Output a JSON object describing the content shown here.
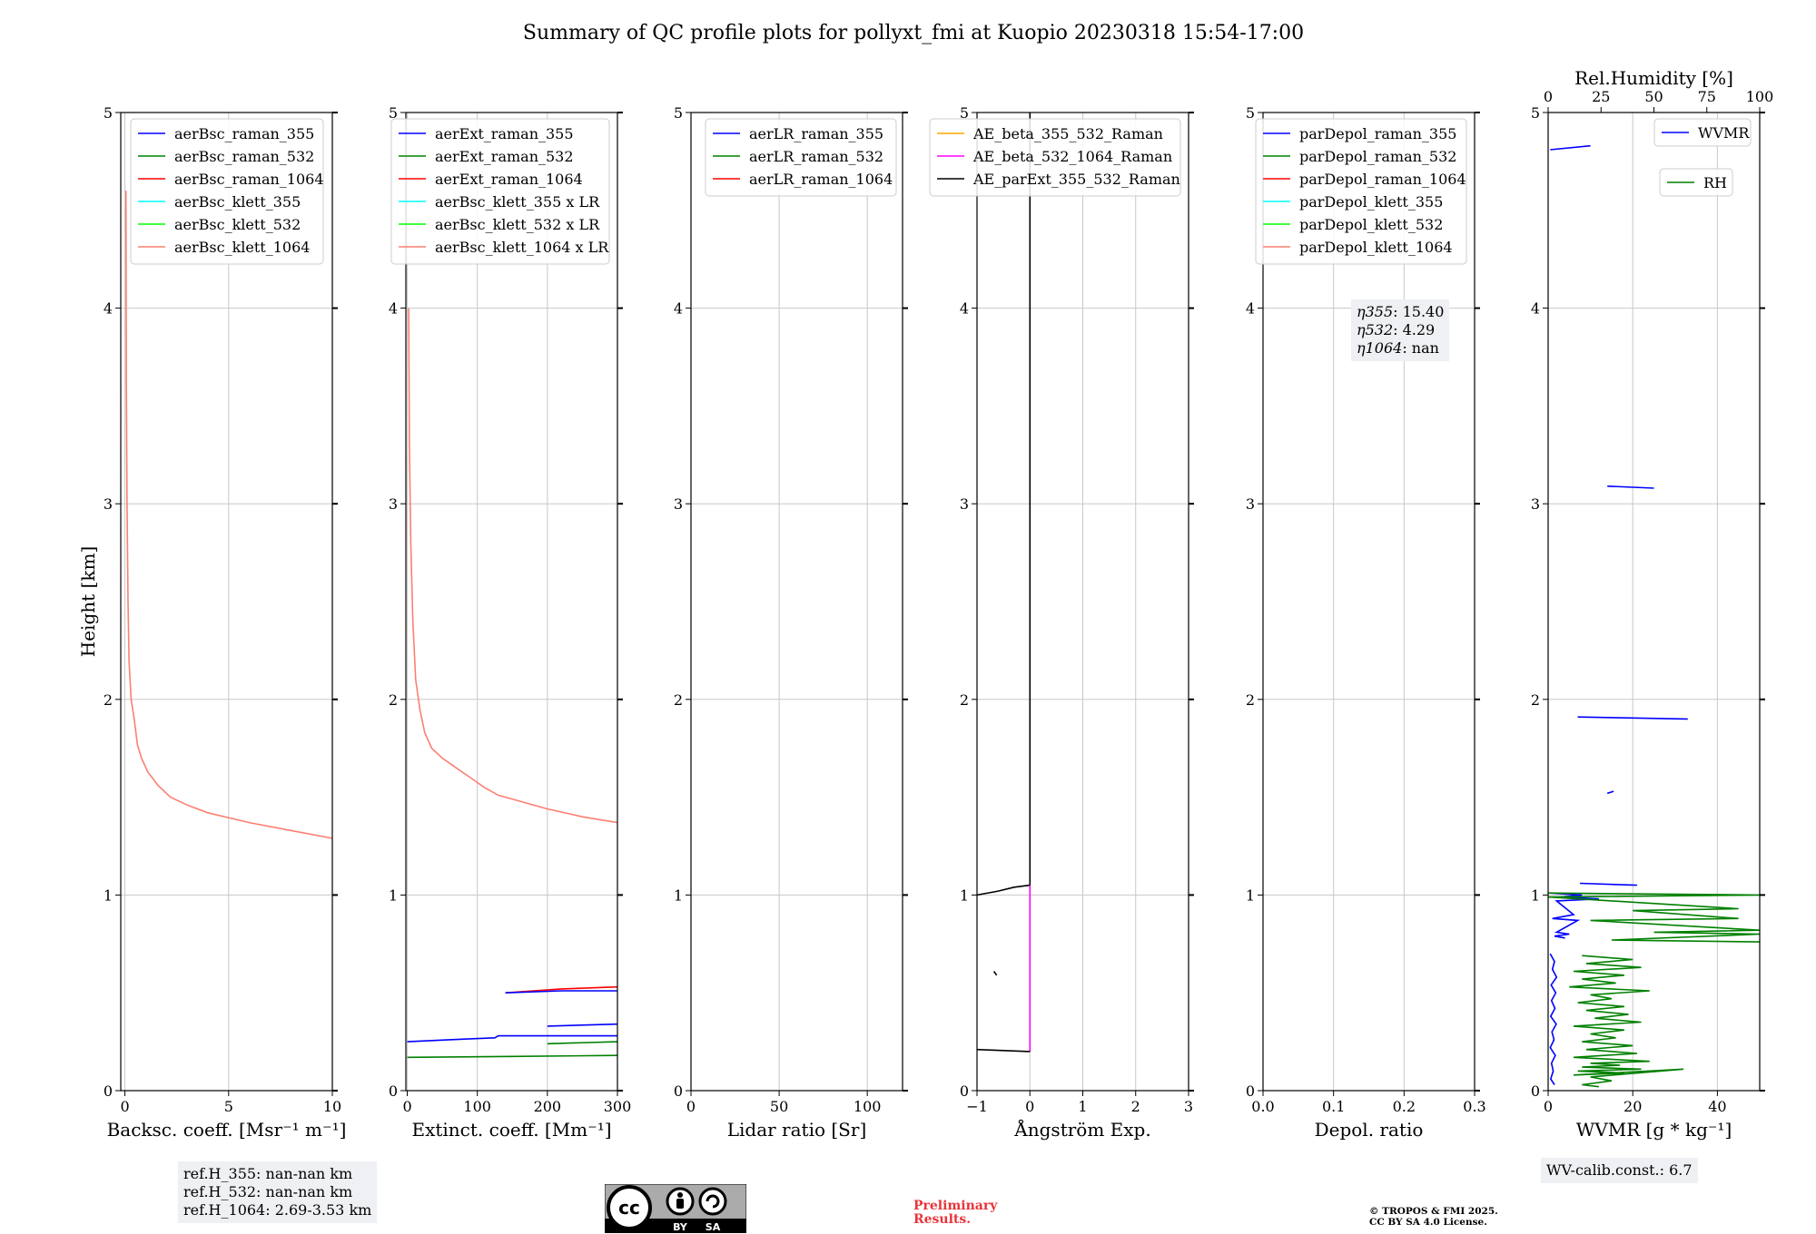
{
  "title": "Summary of QC profile plots for pollyxt_fmi at Kuopio 20230318 15:54-17:00",
  "colors": {
    "blue": "#0000ff",
    "green": "#008000",
    "red": "#ff0000",
    "cyan": "#00ffff",
    "lime": "#00ff00",
    "salmon": "#fa8072",
    "orange": "#ffa500",
    "magenta": "#ff00ff",
    "black": "#000000",
    "grid": "#c8c8c8",
    "annotation_bg": "#eef0f3",
    "prelim": "#e8353b"
  },
  "ref_heights": [
    "ref.H_355: nan-nan km",
    "ref.H_532: nan-nan km",
    "ref.H_1064: 2.69-3.53 km"
  ],
  "eta": {
    "e355_label": "η355",
    "e355_value": ": 15.40",
    "e532_label": "η532",
    "e532_value": ": 4.29",
    "e1064_label": "η1064",
    "e1064_value": ": nan"
  },
  "wv_calib": "WV-calib.const.: 6.7",
  "preliminary": [
    "Preliminary",
    "Results."
  ],
  "copyright": [
    "© TROPOS & FMI 2025.",
    "CC BY SA 4.0 License."
  ],
  "license_badge": {
    "icon": "cc-by-sa-icon",
    "by": "BY",
    "sa": "SA"
  },
  "chart_data": [
    {
      "type": "line",
      "id": "backscatter",
      "xlabel": "Backsc. coeff. [Msr⁻¹ m⁻¹]",
      "ylabel": "Height [km]",
      "xlim": [
        -0.2,
        10
      ],
      "ylim": [
        0,
        5
      ],
      "xticks": [
        "0",
        "5",
        "10"
      ],
      "xtick_values": [
        0,
        5,
        10
      ],
      "yticks": [
        "0",
        "1",
        "2",
        "3",
        "4",
        "5"
      ],
      "grid": true,
      "legend_position": "top-right",
      "legend": [
        "aerBsc_raman_355",
        "aerBsc_raman_532",
        "aerBsc_raman_1064",
        "aerBsc_klett_355",
        "aerBsc_klett_532",
        "aerBsc_klett_1064"
      ],
      "legend_colors": [
        "blue",
        "green",
        "red",
        "cyan",
        "lime",
        "salmon"
      ],
      "series": [
        {
          "name": "aerBsc_klett_1064",
          "color": "salmon",
          "x": [
            10,
            8,
            6,
            4,
            3,
            2.2,
            1.6,
            1.1,
            0.8,
            0.6,
            0.45,
            0.3,
            0.2,
            0.15,
            0.1,
            0.07,
            0.05
          ],
          "y": [
            1.29,
            1.33,
            1.37,
            1.42,
            1.46,
            1.5,
            1.56,
            1.63,
            1.7,
            1.77,
            1.9,
            2.0,
            2.2,
            2.5,
            3.0,
            3.6,
            4.6
          ]
        }
      ]
    },
    {
      "type": "line",
      "id": "extinction",
      "xlabel": "Extinct. coeff. [Mm⁻¹]",
      "xlim": [
        -2,
        300
      ],
      "ylim": [
        0,
        5
      ],
      "xticks": [
        "0",
        "100",
        "200",
        "300"
      ],
      "xtick_values": [
        0,
        100,
        200,
        300
      ],
      "yticks": [
        "0",
        "1",
        "2",
        "3",
        "4",
        "5"
      ],
      "grid": true,
      "legend_position": "top-right",
      "legend": [
        "aerExt_raman_355",
        "aerExt_raman_532",
        "aerExt_raman_1064",
        "aerBsc_klett_355 x LR",
        "aerBsc_klett_532 x LR",
        "aerBsc_klett_1064 x LR"
      ],
      "legend_colors": [
        "blue",
        "green",
        "red",
        "cyan",
        "lime",
        "salmon"
      ],
      "series": [
        {
          "name": "aerBsc_klett_1064 x LR",
          "color": "salmon",
          "x": [
            300,
            250,
            200,
            160,
            130,
            110,
            90,
            70,
            50,
            35,
            25,
            18,
            12,
            8,
            5,
            3,
            2
          ],
          "y": [
            1.37,
            1.4,
            1.44,
            1.48,
            1.51,
            1.55,
            1.6,
            1.65,
            1.7,
            1.75,
            1.83,
            1.95,
            2.1,
            2.4,
            2.8,
            3.3,
            4.0
          ]
        },
        {
          "name": "aerExt_raman_1064",
          "color": "red",
          "x": [
            140,
            220,
            300
          ],
          "y": [
            0.5,
            0.52,
            0.53
          ]
        },
        {
          "name": "aerExt_raman_355",
          "color": "blue",
          "x": [
            140,
            220,
            300
          ],
          "y": [
            0.5,
            0.51,
            0.51
          ]
        },
        {
          "name": "aerExt_raman_355",
          "color": "blue",
          "x": [
            0,
            60,
            125,
            130,
            300
          ],
          "y": [
            0.25,
            0.26,
            0.27,
            0.28,
            0.28
          ]
        },
        {
          "name": "aerExt_raman_355",
          "color": "blue",
          "x": [
            200,
            300
          ],
          "y": [
            0.33,
            0.34
          ]
        },
        {
          "name": "aerExt_raman_532",
          "color": "green",
          "x": [
            0,
            150,
            300
          ],
          "y": [
            0.17,
            0.175,
            0.18
          ]
        },
        {
          "name": "aerExt_raman_532",
          "color": "green",
          "x": [
            200,
            300
          ],
          "y": [
            0.24,
            0.25
          ]
        }
      ]
    },
    {
      "type": "line",
      "id": "lidar-ratio",
      "xlabel": "Lidar ratio [Sr]",
      "xlim": [
        0,
        120
      ],
      "ylim": [
        0,
        5
      ],
      "xticks": [
        "0",
        "50",
        "100"
      ],
      "xtick_values": [
        0,
        50,
        100
      ],
      "yticks": [
        "0",
        "1",
        "2",
        "3",
        "4",
        "5"
      ],
      "grid": true,
      "legend_position": "top-right",
      "legend": [
        "aerLR_raman_355",
        "aerLR_raman_532",
        "aerLR_raman_1064"
      ],
      "legend_colors": [
        "blue",
        "green",
        "red"
      ],
      "series": []
    },
    {
      "type": "line",
      "id": "angstrom",
      "xlabel": "Ångström Exp.",
      "xlim": [
        -1,
        3
      ],
      "ylim": [
        0,
        5
      ],
      "xticks": [
        "−1",
        "0",
        "1",
        "2",
        "3"
      ],
      "xtick_values": [
        -1,
        0,
        1,
        2,
        3
      ],
      "yticks": [
        "0",
        "1",
        "2",
        "3",
        "4",
        "5"
      ],
      "grid": true,
      "legend_position": "top-left",
      "legend": [
        "AE_beta_355_532_Raman",
        "AE_beta_532_1064_Raman",
        "AE_parExt_355_532_Raman"
      ],
      "legend_colors": [
        "orange",
        "magenta",
        "black"
      ],
      "series": [
        {
          "name": "AE_parExt_355_532_Raman",
          "color": "black",
          "x": [
            0,
            0
          ],
          "y": [
            1.05,
            5
          ]
        },
        {
          "name": "AE_parExt_355_532_Raman",
          "color": "black",
          "x": [
            -1,
            -0.6,
            -0.3,
            0
          ],
          "y": [
            1.0,
            1.02,
            1.04,
            1.05
          ]
        },
        {
          "name": "AE_beta_532_1064_Raman",
          "color": "magenta",
          "x": [
            0,
            0
          ],
          "y": [
            0.2,
            1.05
          ]
        },
        {
          "name": "AE_parExt_355_532_Raman",
          "color": "black",
          "x": [
            -1,
            -0.5,
            0
          ],
          "y": [
            0.21,
            0.205,
            0.2
          ]
        },
        {
          "name": "AE_parExt_355_532_Raman",
          "color": "black",
          "x": [
            -0.68,
            -0.63
          ],
          "y": [
            0.61,
            0.59
          ]
        }
      ]
    },
    {
      "type": "line",
      "id": "depolarization",
      "xlabel": "Depol. ratio",
      "xlim": [
        0,
        0.3
      ],
      "ylim": [
        0,
        5
      ],
      "xticks": [
        "0.0",
        "0.1",
        "0.2",
        "0.3"
      ],
      "xtick_values": [
        0,
        0.1,
        0.2,
        0.3
      ],
      "yticks": [
        "0",
        "1",
        "2",
        "3",
        "4",
        "5"
      ],
      "grid": true,
      "legend_position": "top-right",
      "legend": [
        "parDepol_raman_355",
        "parDepol_raman_532",
        "parDepol_raman_1064",
        "parDepol_klett_355",
        "parDepol_klett_532",
        "parDepol_klett_1064"
      ],
      "legend_colors": [
        "blue",
        "green",
        "red",
        "cyan",
        "lime",
        "salmon"
      ],
      "series": []
    },
    {
      "type": "line",
      "id": "water-vapor",
      "xlabel": "WVMR [g * kg⁻¹]",
      "x2label": "Rel.Humidity [%]",
      "xlim": [
        0,
        50
      ],
      "x2lim": [
        0,
        100
      ],
      "ylim": [
        0,
        5
      ],
      "xticks": [
        "0",
        "20",
        "40"
      ],
      "xtick_values": [
        0,
        20,
        40
      ],
      "x2ticks": [
        "0",
        "25",
        "50",
        "75",
        "100"
      ],
      "x2tick_values": [
        0,
        25,
        50,
        75,
        100
      ],
      "yticks": [
        "0",
        "1",
        "2",
        "3",
        "4",
        "5"
      ],
      "grid": true,
      "legend_position": "top-right",
      "legend": [
        "WVMR",
        "RH"
      ],
      "legend_colors": [
        "blue",
        "green"
      ],
      "series": [
        {
          "name": "WVMR",
          "color": "blue",
          "x": [
            0.5,
            10
          ],
          "y": [
            4.81,
            4.83
          ]
        },
        {
          "name": "WVMR",
          "color": "blue",
          "x": [
            14,
            25
          ],
          "y": [
            3.09,
            3.08
          ]
        },
        {
          "name": "WVMR",
          "color": "blue",
          "x": [
            7,
            33
          ],
          "y": [
            1.91,
            1.9
          ]
        },
        {
          "name": "WVMR",
          "color": "blue",
          "x": [
            14,
            15.5
          ],
          "y": [
            1.52,
            1.53
          ]
        },
        {
          "name": "WVMR",
          "color": "blue",
          "x": [
            7.5,
            21
          ],
          "y": [
            1.06,
            1.05
          ]
        },
        {
          "name": "WVMR",
          "color": "blue",
          "x": [
            0.5,
            8,
            3,
            12,
            2,
            6,
            1,
            7,
            2,
            5,
            1.5,
            4
          ],
          "y": [
            1.01,
            1.0,
            0.99,
            0.98,
            0.97,
            0.9,
            0.88,
            0.87,
            0.81,
            0.8,
            0.79,
            0.78
          ]
        },
        {
          "name": "WVMR",
          "color": "blue",
          "x": [
            0.5,
            1.5,
            1,
            2,
            0.7,
            1.8,
            0.8,
            1.6,
            0.6,
            1.9,
            0.9,
            1.4,
            0.5,
            1.7,
            0.8,
            1.2,
            0.6,
            1.5
          ],
          "y": [
            0.7,
            0.66,
            0.62,
            0.58,
            0.54,
            0.5,
            0.46,
            0.42,
            0.38,
            0.34,
            0.3,
            0.26,
            0.22,
            0.18,
            0.14,
            0.1,
            0.06,
            0.03
          ]
        },
        {
          "name": "RH",
          "color": "green",
          "x": [
            0,
            50,
            0,
            45,
            20,
            45,
            10,
            50,
            25,
            50,
            15,
            50
          ],
          "y": [
            1.01,
            1.0,
            0.99,
            0.93,
            0.92,
            0.88,
            0.87,
            0.82,
            0.81,
            0.8,
            0.77,
            0.76
          ]
        },
        {
          "name": "RH",
          "color": "green",
          "x": [
            8,
            20,
            9,
            22,
            6,
            18,
            8,
            16,
            5,
            24,
            10,
            15,
            7,
            18,
            9,
            19,
            11,
            22,
            6,
            18,
            10,
            16,
            8,
            20,
            9,
            21,
            6,
            24,
            10,
            17,
            8,
            22,
            7,
            18,
            6,
            32,
            10,
            15,
            8,
            12
          ],
          "y": [
            0.69,
            0.67,
            0.65,
            0.63,
            0.61,
            0.59,
            0.57,
            0.55,
            0.53,
            0.51,
            0.49,
            0.47,
            0.45,
            0.43,
            0.41,
            0.39,
            0.37,
            0.35,
            0.33,
            0.31,
            0.29,
            0.27,
            0.25,
            0.23,
            0.21,
            0.19,
            0.17,
            0.15,
            0.14,
            0.13,
            0.12,
            0.11,
            0.1,
            0.09,
            0.08,
            0.11,
            0.07,
            0.05,
            0.03,
            0.02
          ]
        }
      ]
    }
  ]
}
